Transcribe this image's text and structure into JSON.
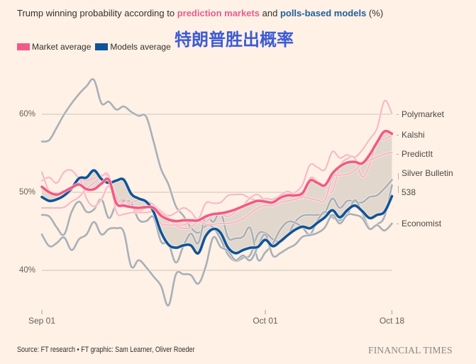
{
  "title": {
    "prefix": "Trump winning probability according to ",
    "markets": "prediction markets",
    "mid": " and ",
    "models": "polls-based models",
    "suffix": " (%)"
  },
  "overlay_text": "特朗普胜出概率",
  "legend": [
    {
      "label": "Market average",
      "color": "#f25a85"
    },
    {
      "label": "Models average",
      "color": "#0f5499"
    }
  ],
  "colors": {
    "market_average": "#f25a85",
    "models_average": "#0f5499",
    "market_component": "#f6b6c6",
    "model_component": "#a7b0b9",
    "band": "#e2d7cd",
    "gridline": "#cdc2b8",
    "background": "#fff1e5"
  },
  "source": "Source: FT research • FT graphic: Sam Learner, Oliver Roeder",
  "brand": "FINANCIAL TIMES",
  "chart_data": {
    "type": "line",
    "title": "Trump winning probability according to prediction markets and polls-based models (%)",
    "xlabel": "",
    "ylabel": "",
    "ylim": [
      35,
      65
    ],
    "grid": true,
    "legend_position": "top-left",
    "yticks": [
      {
        "value": 60,
        "label": "60%"
      },
      {
        "value": 50,
        "label": "50%"
      },
      {
        "value": 40,
        "label": "40%"
      }
    ],
    "xticks": [
      {
        "value": "Sep 01",
        "label": "Sep 01"
      },
      {
        "value": "Oct 01",
        "label": "Oct 01"
      },
      {
        "value": "Oct 18",
        "label": "Oct 18"
      }
    ],
    "x": [
      "Sep 01",
      "Sep 02",
      "Sep 03",
      "Sep 04",
      "Sep 05",
      "Sep 06",
      "Sep 07",
      "Sep 08",
      "Sep 09",
      "Sep 10",
      "Sep 11",
      "Sep 12",
      "Sep 13",
      "Sep 14",
      "Sep 15",
      "Sep 16",
      "Sep 17",
      "Sep 18",
      "Sep 19",
      "Sep 20",
      "Sep 21",
      "Sep 22",
      "Sep 23",
      "Sep 24",
      "Sep 25",
      "Sep 26",
      "Sep 27",
      "Sep 28",
      "Sep 29",
      "Sep 30",
      "Oct 01",
      "Oct 02",
      "Oct 03",
      "Oct 04",
      "Oct 05",
      "Oct 06",
      "Oct 07",
      "Oct 08",
      "Oct 09",
      "Oct 10",
      "Oct 11",
      "Oct 12",
      "Oct 13",
      "Oct 14",
      "Oct 15",
      "Oct 16",
      "Oct 17",
      "Oct 18"
    ],
    "band": {
      "between": [
        "Market average",
        "Models average"
      ]
    },
    "series": [
      {
        "name": "Silver Bulletin",
        "group": "models",
        "role": "component",
        "values": [
          56.5,
          56.7,
          58.3,
          60.0,
          61.4,
          62.6,
          63.6,
          64.4,
          61.4,
          61.6,
          60.6,
          61.0,
          60.3,
          59.8,
          59.7,
          56.5,
          53.0,
          51.0,
          48.2,
          47.0,
          45.5,
          44.8,
          45.7,
          45.5,
          44.0,
          42.0,
          41.2,
          41.6,
          42.0,
          44.6,
          44.8,
          44.0,
          43.7,
          44.5,
          46.2,
          47.0,
          47.1,
          47.1,
          47.4,
          49.2,
          48.0,
          48.9,
          48.8,
          48.7,
          49.4,
          49.6,
          50.5,
          51.6
        ]
      },
      {
        "name": "538",
        "group": "models",
        "role": "component",
        "values": [
          47.1,
          46.9,
          45.5,
          44.6,
          47.5,
          48.8,
          47.5,
          47.8,
          49.1,
          46.7,
          48.5,
          48.9,
          48.6,
          46.5,
          46.3,
          46.8,
          43.7,
          43.4,
          41.0,
          43.1,
          44.7,
          43.5,
          47.0,
          46.2,
          47.4,
          44.2,
          44.1,
          44.3,
          45.4,
          41.4,
          42.3,
          43.4,
          45.2,
          46.2,
          46.1,
          45.5,
          44.6,
          46.4,
          47.5,
          46.8,
          46.4,
          47.1,
          49.0,
          47.4,
          45.4,
          45.9,
          46.9,
          50.9
        ]
      },
      {
        "name": "Economist",
        "group": "models",
        "role": "component",
        "values": [
          44.6,
          43.1,
          43.5,
          44.2,
          42.6,
          44.0,
          44.6,
          46.2,
          44.6,
          45.3,
          45.4,
          44.9,
          40.5,
          41.3,
          40.4,
          39.2,
          38.0,
          35.5,
          39.5,
          39.5,
          39.4,
          38.3,
          40.5,
          44.2,
          43.0,
          42.5,
          41.3,
          41.9,
          41.3,
          43.0,
          44.6,
          41.9,
          42.2,
          42.8,
          43.3,
          44.3,
          44.5,
          44.8,
          45.5,
          47.1,
          46.0,
          47.1,
          47.1,
          46.7,
          45.3,
          45.8,
          45.1,
          46.0
        ]
      },
      {
        "name": "Polymarket",
        "group": "markets",
        "role": "component",
        "values": [
          51.5,
          51.9,
          51.2,
          52.6,
          52.8,
          51.8,
          51.5,
          51.8,
          52.2,
          51.9,
          49.5,
          48.5,
          48.7,
          49.0,
          48.9,
          48.4,
          47.6,
          47.0,
          47.4,
          48.0,
          47.5,
          46.6,
          48.6,
          48.6,
          48.7,
          49.6,
          49.7,
          49.7,
          49.2,
          49.0,
          49.2,
          49.1,
          49.6,
          49.8,
          50.0,
          51.0,
          53.5,
          53.2,
          52.9,
          55.2,
          54.4,
          54.8,
          54.5,
          55.4,
          56.8,
          58.2,
          61.7,
          60.1
        ]
      },
      {
        "name": "Kalshi",
        "group": "markets",
        "role": "component",
        "values": [
          52.6,
          50.1,
          49.9,
          49.6,
          50.2,
          51.8,
          49.2,
          48.2,
          49.1,
          50.8,
          48.8,
          49.2,
          48.2,
          47.6,
          48.0,
          48.2,
          47.4,
          46.7,
          45.7,
          45.4,
          45.5,
          46.3,
          46.2,
          47.1,
          47.2,
          46.9,
          47.5,
          48.3,
          49.3,
          49.7,
          48.9,
          48.7,
          49.6,
          50.1,
          49.7,
          49.3,
          51.8,
          51.4,
          50.8,
          50.1,
          53.3,
          54.3,
          54.4,
          52.0,
          53.5,
          56.5,
          56.8,
          57.3
        ]
      },
      {
        "name": "PredictIt",
        "group": "markets",
        "role": "component",
        "values": [
          48.0,
          48.0,
          48.0,
          48.1,
          48.8,
          49.4,
          50.5,
          51.2,
          52.0,
          52.1,
          47.5,
          47.2,
          47.4,
          47.4,
          47.4,
          47.4,
          46.0,
          45.8,
          45.8,
          45.8,
          46.2,
          46.3,
          45.9,
          45.9,
          46.0,
          46.0,
          46.2,
          46.6,
          47.3,
          48.0,
          48.3,
          48.3,
          48.7,
          48.9,
          49.1,
          49.4,
          49.2,
          49.0,
          49.0,
          51.9,
          52.2,
          52.3,
          52.8,
          53.7,
          54.1,
          54.5,
          54.9,
          55.1
        ]
      },
      {
        "name": "Models average",
        "group": "models",
        "role": "average",
        "values": [
          49.4,
          48.9,
          49.1,
          49.6,
          50.5,
          51.8,
          51.9,
          52.8,
          51.7,
          51.2,
          51.5,
          51.6,
          49.8,
          49.2,
          48.8,
          47.5,
          44.9,
          43.3,
          42.9,
          43.2,
          43.2,
          42.2,
          44.4,
          45.3,
          44.8,
          42.9,
          42.2,
          42.6,
          42.9,
          43.0,
          43.9,
          43.1,
          43.7,
          44.5,
          45.2,
          45.6,
          45.4,
          46.1,
          46.8,
          47.7,
          46.8,
          47.7,
          48.3,
          47.6,
          46.7,
          47.1,
          47.5,
          49.5
        ]
      },
      {
        "name": "Market average",
        "group": "markets",
        "role": "average",
        "values": [
          50.7,
          50.0,
          49.7,
          50.1,
          50.6,
          51.0,
          50.4,
          50.4,
          51.1,
          51.6,
          48.6,
          48.3,
          48.1,
          48.0,
          48.1,
          48.0,
          47.0,
          46.5,
          46.3,
          46.4,
          46.4,
          46.4,
          46.9,
          47.2,
          47.3,
          47.5,
          47.8,
          48.2,
          48.6,
          48.9,
          48.8,
          48.7,
          49.3,
          49.6,
          49.6,
          49.9,
          51.5,
          51.2,
          50.9,
          52.4,
          53.3,
          53.8,
          53.9,
          53.7,
          54.8,
          56.4,
          57.8,
          57.5
        ]
      }
    ]
  }
}
